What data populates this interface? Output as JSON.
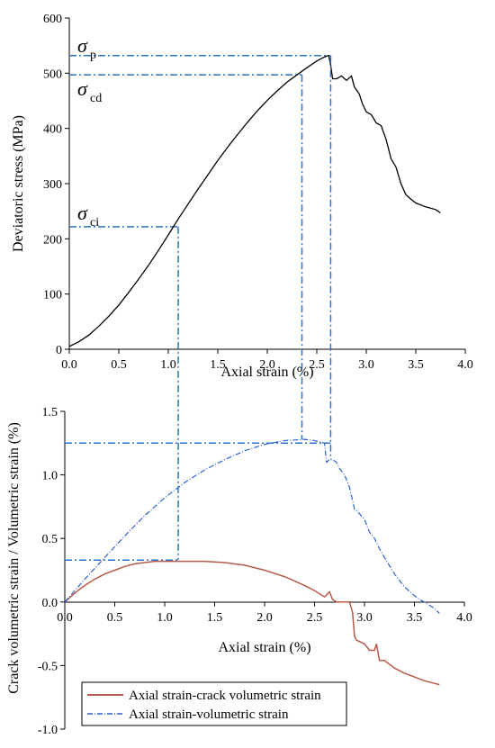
{
  "chart_data": [
    {
      "type": "line",
      "xlabel": "Axial strain (%)",
      "ylabel": "Deviatoric stress (MPa)",
      "xlim": [
        0,
        4.0
      ],
      "ylim": [
        0,
        600
      ],
      "xticks": [
        "0.0",
        "0.5",
        "1.0",
        "1.5",
        "2.0",
        "2.5",
        "3.0",
        "3.5",
        "4.0"
      ],
      "yticks": [
        "0",
        "100",
        "200",
        "300",
        "400",
        "500",
        "600"
      ],
      "grid": false,
      "series": [
        {
          "color": "#000000",
          "x": [
            0,
            0.1,
            0.2,
            0.3,
            0.4,
            0.5,
            0.6,
            0.7,
            0.8,
            0.9,
            1.0,
            1.1,
            1.2,
            1.3,
            1.4,
            1.5,
            1.6,
            1.7,
            1.8,
            1.9,
            2.0,
            2.1,
            2.2,
            2.3,
            2.4,
            2.5,
            2.55,
            2.6,
            2.62,
            2.64,
            2.66,
            2.7,
            2.75,
            2.8,
            2.85,
            2.88,
            2.9,
            2.93,
            2.96,
            3.0,
            3.05,
            3.1,
            3.15,
            3.2,
            3.25,
            3.3,
            3.35,
            3.4,
            3.45,
            3.5,
            3.6,
            3.7,
            3.75
          ],
          "y": [
            5,
            14,
            26,
            42,
            60,
            80,
            103,
            127,
            152,
            179,
            207,
            236,
            263,
            290,
            316,
            342,
            366,
            389,
            411,
            432,
            451,
            468,
            484,
            497,
            510,
            522,
            527,
            531,
            532,
            515,
            490,
            490,
            495,
            487,
            495,
            475,
            470,
            462,
            445,
            430,
            425,
            410,
            405,
            380,
            345,
            330,
            300,
            280,
            272,
            265,
            258,
            253,
            247
          ]
        }
      ],
      "annotations": {
        "sigma_p": {
          "label": "σ",
          "sub": "p",
          "x": 2.64,
          "y": 532
        },
        "sigma_cd": {
          "label": "σ",
          "sub": "cd",
          "x": 2.35,
          "y": 497
        },
        "sigma_ci": {
          "label": "σ",
          "sub": "ci",
          "x": 1.1,
          "y": 222
        }
      }
    },
    {
      "type": "line",
      "xlabel": "Axial strain (%)",
      "ylabel": "Crack volumetric strain / Volumetric strain (%)",
      "xlim": [
        0,
        4.0
      ],
      "ylim": [
        -1.0,
        1.5
      ],
      "xticks": [
        "0.0",
        "0.5",
        "1.0",
        "1.5",
        "2.0",
        "2.5",
        "3.0",
        "3.5",
        "4.0"
      ],
      "yticks": [
        "-1.0",
        "-0.5",
        "0.0",
        "0.5",
        "1.0",
        "1.5"
      ],
      "grid": false,
      "legend_position": "bottom-left",
      "series": [
        {
          "name": "Axial strain-crack volumetric strain",
          "color": "#b85a4a",
          "x": [
            0,
            0.1,
            0.2,
            0.3,
            0.4,
            0.5,
            0.6,
            0.7,
            0.8,
            0.9,
            1.0,
            1.2,
            1.4,
            1.6,
            1.8,
            2.0,
            2.2,
            2.4,
            2.5,
            2.6,
            2.65,
            2.68,
            2.7,
            2.72,
            2.8,
            2.85,
            2.88,
            2.9,
            2.92,
            3.0,
            3.05,
            3.1,
            3.12,
            3.15,
            3.2,
            3.3,
            3.4,
            3.5,
            3.6,
            3.7,
            3.75
          ],
          "y": [
            0.0,
            0.07,
            0.13,
            0.18,
            0.22,
            0.25,
            0.28,
            0.3,
            0.31,
            0.32,
            0.32,
            0.32,
            0.32,
            0.31,
            0.29,
            0.25,
            0.2,
            0.13,
            0.09,
            0.04,
            0.08,
            0.02,
            0.01,
            0.0,
            0.0,
            0.0,
            -0.08,
            -0.27,
            -0.3,
            -0.33,
            -0.38,
            -0.38,
            -0.33,
            -0.46,
            -0.46,
            -0.52,
            -0.56,
            -0.59,
            -0.62,
            -0.64,
            -0.65
          ]
        },
        {
          "name": "Axial strain-volumetric strain",
          "color": "#2f5fd0",
          "x": [
            0,
            0.2,
            0.4,
            0.6,
            0.8,
            1.0,
            1.2,
            1.4,
            1.6,
            1.8,
            2.0,
            2.2,
            2.4,
            2.5,
            2.6,
            2.62,
            2.65,
            2.68,
            2.72,
            2.75,
            2.8,
            2.85,
            2.88,
            2.9,
            2.92,
            3.0,
            3.05,
            3.1,
            3.15,
            3.2,
            3.3,
            3.4,
            3.5,
            3.55,
            3.6,
            3.7,
            3.75
          ],
          "y": [
            0.0,
            0.18,
            0.35,
            0.52,
            0.68,
            0.82,
            0.94,
            1.04,
            1.12,
            1.19,
            1.24,
            1.27,
            1.28,
            1.27,
            1.25,
            1.1,
            1.12,
            1.12,
            1.1,
            1.05,
            1.0,
            0.9,
            0.8,
            0.73,
            0.72,
            0.65,
            0.55,
            0.5,
            0.42,
            0.35,
            0.22,
            0.12,
            0.05,
            0.02,
            0.0,
            -0.05,
            -0.09
          ]
        }
      ]
    }
  ],
  "colors": {
    "guide": "#2f72c4"
  }
}
